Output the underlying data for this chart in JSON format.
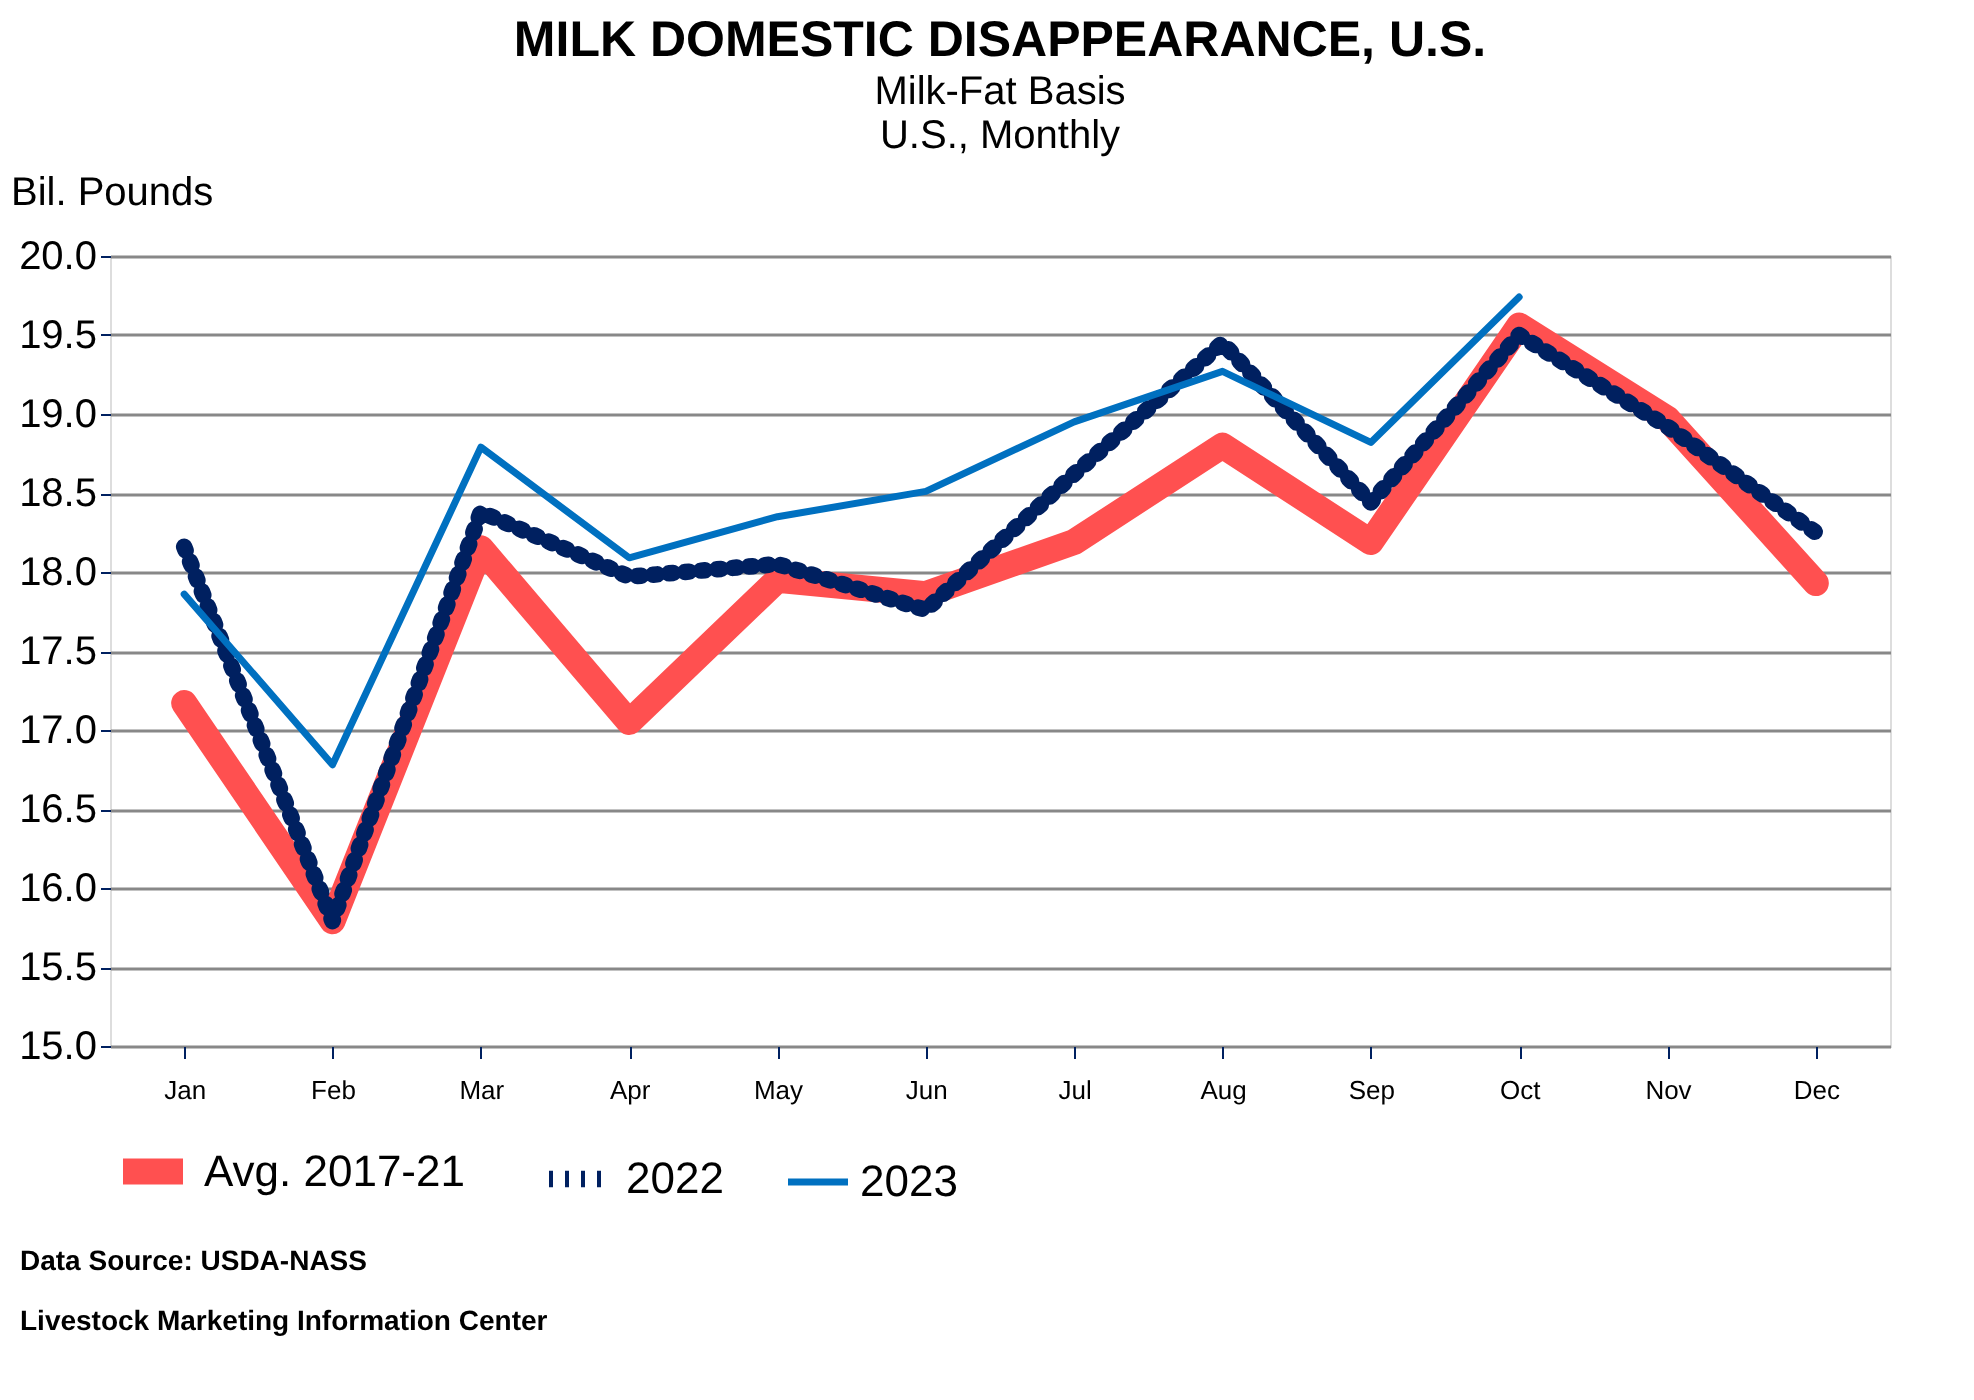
{
  "chart_data": {
    "type": "line",
    "title": "MILK DOMESTIC DISAPPEARANCE, U.S.",
    "subtitle": "Milk-Fat Basis\nU.S., Monthly",
    "ylabel": "Bil. Pounds",
    "categories": [
      "Jan",
      "Feb",
      "Mar",
      "Apr",
      "May",
      "Jun",
      "Jul",
      "Aug",
      "Sep",
      "Oct",
      "Nov",
      "Dec"
    ],
    "series": [
      {
        "name": "Avg. 2017-21",
        "color": "#ff5050",
        "line_style": "solid",
        "values": [
          17.17,
          15.79,
          18.15,
          17.05,
          17.95,
          17.86,
          18.19,
          18.8,
          18.19,
          19.56,
          18.97,
          17.93
        ]
      },
      {
        "name": "2022",
        "color": "#002060",
        "line_style": "dotted",
        "values": [
          18.16,
          15.79,
          18.38,
          17.97,
          18.05,
          17.76,
          18.62,
          19.45,
          18.44,
          19.5,
          18.92,
          18.25
        ]
      },
      {
        "name": "2023",
        "color": "#0070c0",
        "line_style": "solid",
        "values": [
          17.86,
          16.78,
          18.79,
          18.09,
          18.35,
          18.51,
          18.95,
          19.27,
          18.82,
          19.74,
          null,
          null
        ]
      }
    ],
    "ylim": [
      15.0,
      20.0
    ],
    "yticks": [
      {
        "value": 15,
        "label": "15.0"
      },
      {
        "value": 15.5,
        "label": "15.5"
      },
      {
        "value": 16,
        "label": "16.0"
      },
      {
        "value": 16.5,
        "label": "16.5"
      },
      {
        "value": 17,
        "label": "17.0"
      },
      {
        "value": 17.5,
        "label": "17.5"
      },
      {
        "value": 18,
        "label": "18.0"
      },
      {
        "value": 18.5,
        "label": "18.5"
      },
      {
        "value": 19,
        "label": "19.0"
      },
      {
        "value": 19.5,
        "label": "19.5"
      },
      {
        "value": 20,
        "label": "20.0"
      }
    ],
    "grid": "y",
    "legend": "bottom",
    "marker": "none",
    "annotations": [
      "Data Source:  USDA-NASS",
      "Livestock Marketing Information Center"
    ]
  }
}
